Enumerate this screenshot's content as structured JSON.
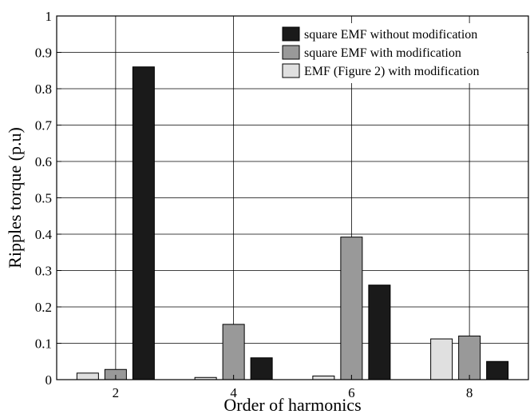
{
  "chart_data": {
    "type": "bar",
    "title": "",
    "xlabel": "Order of harmonics",
    "ylabel": "Ripples torque (p.u)",
    "categories": [
      "2",
      "4",
      "6",
      "8"
    ],
    "ylim": [
      0,
      1
    ],
    "yticks": [
      "0",
      "0.1",
      "0.2",
      "0.3",
      "0.4",
      "0.5",
      "0.6",
      "0.7",
      "0.8",
      "0.9",
      "1"
    ],
    "grid": true,
    "legend_position": "top-right",
    "series": [
      {
        "name": "EMF (Figure 2) with modification",
        "color": "#e0e0e0",
        "values": [
          0.018,
          0.006,
          0.01,
          0.112
        ]
      },
      {
        "name": "square EMF with modification",
        "color": "#999999",
        "values": [
          0.028,
          0.152,
          0.392,
          0.12
        ]
      },
      {
        "name": "square EMF without modification",
        "color": "#1a1a1a",
        "values": [
          0.86,
          0.06,
          0.26,
          0.05
        ]
      }
    ],
    "legend_order": [
      2,
      1,
      0
    ]
  }
}
